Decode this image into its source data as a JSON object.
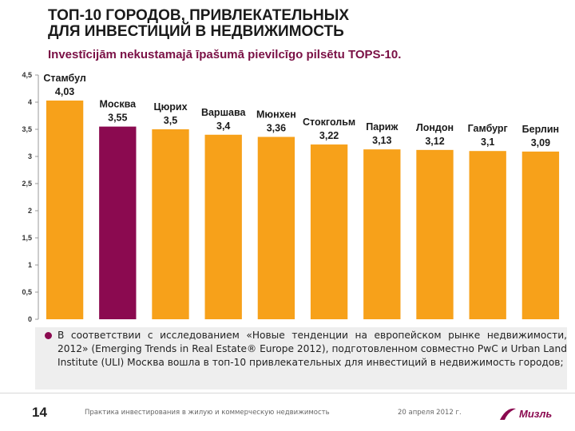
{
  "title": {
    "line1": "ТОП-10 ГОРОДОВ, ПРИВЛЕКАТЕЛЬНЫХ",
    "line2": "ДЛЯ ИНВЕСТИЦИЙ В НЕДВИЖИМОСТЬ"
  },
  "subtitle": "Investīcijām nekustamajā īpašumā pievilcīgo pilsētu TOPS-10.",
  "chart_data": {
    "type": "bar",
    "categories": [
      "Стамбул",
      "Москва",
      "Цюрих",
      "Варшава",
      "Мюнхен",
      "Стокгольм",
      "Париж",
      "Лондон",
      "Гамбург",
      "Берлин"
    ],
    "values": [
      4.03,
      3.55,
      3.5,
      3.4,
      3.36,
      3.22,
      3.13,
      3.12,
      3.1,
      3.09
    ],
    "value_labels": [
      "4,03",
      "3,55",
      "3,5",
      "3,4",
      "3,36",
      "3,22",
      "3,13",
      "3,12",
      "3,1",
      "3,09"
    ],
    "ylim": [
      0,
      4.5
    ],
    "y_ticks": [
      0,
      0.5,
      1,
      1.5,
      2,
      2.5,
      3,
      3.5,
      4,
      4.5
    ],
    "y_tick_labels": [
      "0",
      "0,5",
      "1",
      "1,5",
      "2",
      "2,5",
      "3",
      "3,5",
      "4",
      "4,5"
    ],
    "highlight_index": 1,
    "colors": {
      "bar": "#f7a11a",
      "highlight": "#8b0a50"
    },
    "xlabel": "",
    "ylabel": ""
  },
  "note": "В соответствии с исследованием «Новые тенденции на европейском рынке недвижимости, 2012» (Emerging Trends in Real Estate® Europe 2012), подготовленном совместно PwC и Urban Land Institute (ULI) Москва вошла в топ-10 привлекательных для инвестиций в недвижимость городов;",
  "footer": {
    "page_number": "14",
    "caption": "Практика инвестирования в жилую и коммерческую недвижимость",
    "date": "20 апреля 2012 г.",
    "logo_text": "Мизль"
  },
  "colors": {
    "accent": "#8b0a50",
    "note_bg": "#eeeeee"
  }
}
